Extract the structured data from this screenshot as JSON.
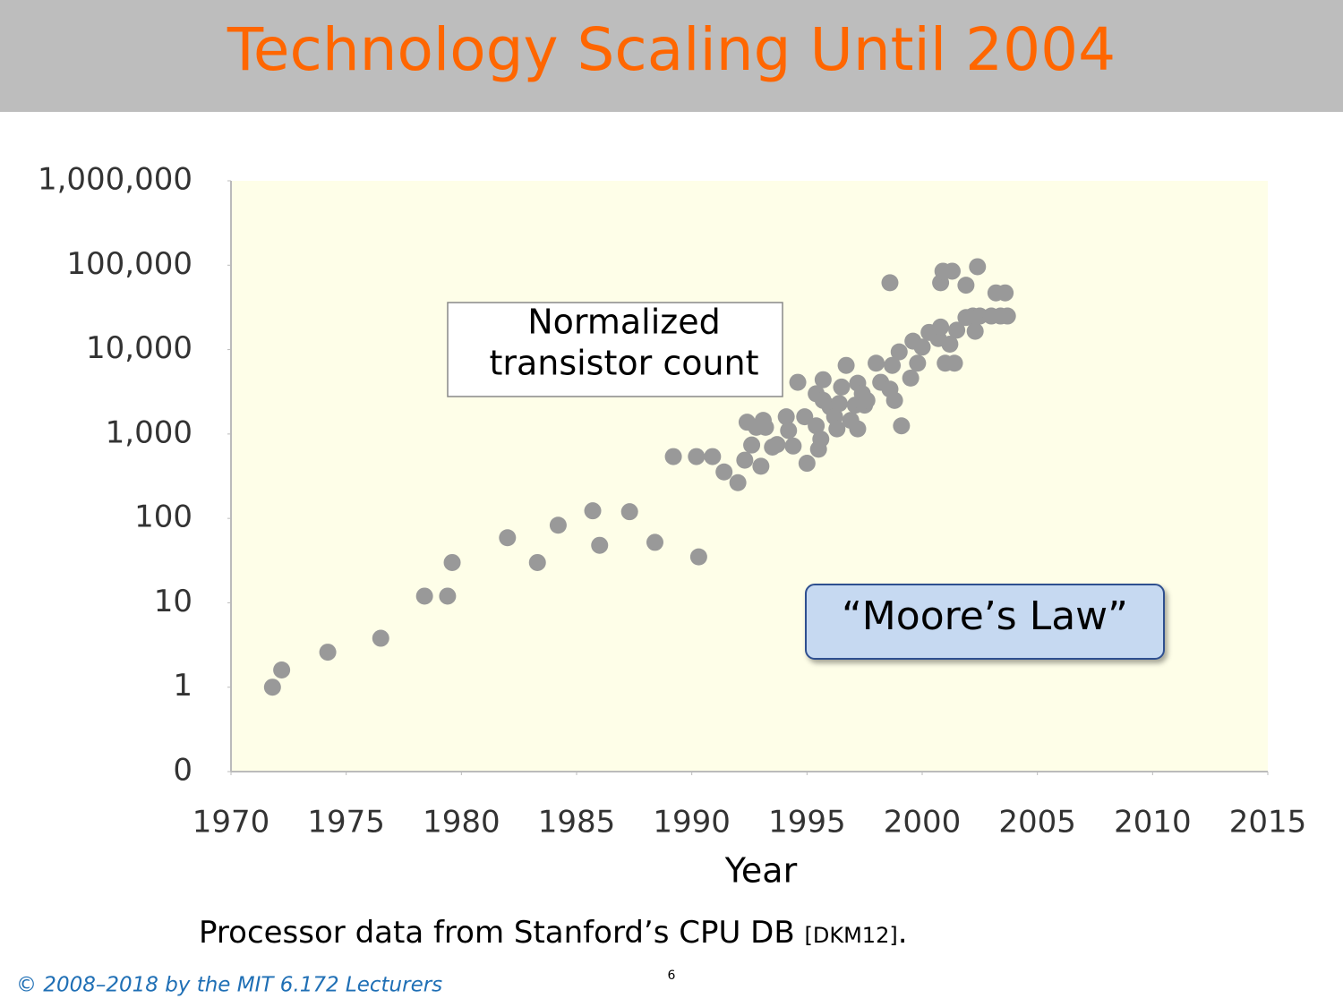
{
  "title": "Technology Scaling Until 2004",
  "chart_data": {
    "type": "scatter",
    "xlabel": "Year",
    "annotations": {
      "count_box": [
        "Normalized",
        "transistor count"
      ],
      "law_box": "“Moore’s Law”"
    },
    "color": "#999999",
    "log_y": true,
    "xlim": [
      1970,
      2015
    ],
    "xticks": [
      1970,
      1975,
      1980,
      1985,
      1990,
      1995,
      2000,
      2005,
      2010,
      2015
    ],
    "ylim": [
      0.1,
      1000000
    ],
    "yticks": [
      {
        "value": 0.1,
        "label": "0"
      },
      1,
      10,
      100,
      {
        "value": 1000,
        "label": "1,000"
      },
      {
        "value": 10000,
        "label": "10,000"
      },
      {
        "value": 100000,
        "label": "100,000"
      },
      {
        "value": 1000000,
        "label": "1,000,000"
      }
    ],
    "x": [
      1971.8,
      1972.2,
      1974.2,
      1976.5,
      1978.4,
      1979.4,
      1979.6,
      1982.0,
      1983.3,
      1984.2,
      1985.7,
      1986.0,
      1987.3,
      1988.4,
      1990.3,
      1989.2,
      1990.2,
      1990.9,
      1991.4,
      1992.0,
      1992.3,
      1992.4,
      1992.6,
      1992.8,
      1993.0,
      1993.1,
      1993.2,
      1993.5,
      1993.7,
      1994.1,
      1994.2,
      1994.4,
      1994.6,
      1994.9,
      1995.0,
      1995.4,
      1995.4,
      1995.5,
      1995.6,
      1995.7,
      1995.7,
      1996.0,
      1996.2,
      1996.3,
      1996.4,
      1996.5,
      1996.7,
      1996.9,
      1997.1,
      1997.2,
      1997.2,
      1997.4,
      1997.5,
      1997.6,
      1998.0,
      1998.2,
      1998.6,
      1998.6,
      1998.7,
      1998.8,
      1999.0,
      1999.1,
      1999.5,
      1999.6,
      1999.8,
      2000.0,
      2000.3,
      2000.7,
      2000.8,
      2000.8,
      2000.9,
      2001.0,
      2001.3,
      2001.4,
      2001.2,
      2001.5,
      2001.9,
      2001.9,
      2002.2,
      2002.4,
      2002.3,
      2002.5,
      2003.0,
      2003.2,
      2003.4,
      2003.6,
      2003.7
    ],
    "values": [
      1,
      1.6,
      2.6,
      3.8,
      12,
      12,
      30,
      59,
      30,
      83,
      123,
      48,
      120,
      52,
      35,
      540,
      540,
      540,
      355,
      265,
      490,
      1380,
      740,
      1200,
      415,
      1450,
      1200,
      700,
      750,
      1600,
      1100,
      720,
      4100,
      1600,
      450,
      1250,
      3000,
      660,
      870,
      4400,
      2500,
      2100,
      1600,
      1150,
      2300,
      3600,
      6500,
      1450,
      2200,
      1150,
      4000,
      3000,
      2200,
      2500,
      6900,
      4100,
      62000,
      3400,
      6500,
      2500,
      9400,
      1250,
      4600,
      12600,
      6900,
      10700,
      16000,
      13500,
      62000,
      18500,
      85000,
      6900,
      85000,
      6900,
      11600,
      17000,
      58000,
      24000,
      25000,
      96000,
      16500,
      25000,
      25000,
      47000,
      25000,
      47000,
      25000
    ]
  },
  "caption": {
    "text": "Processor data from Stanford’s CPU DB",
    "cite": "[DKM12]",
    "end": "."
  },
  "footer": "© 2008–2018 by the MIT 6.172 Lecturers",
  "page_number": "6"
}
